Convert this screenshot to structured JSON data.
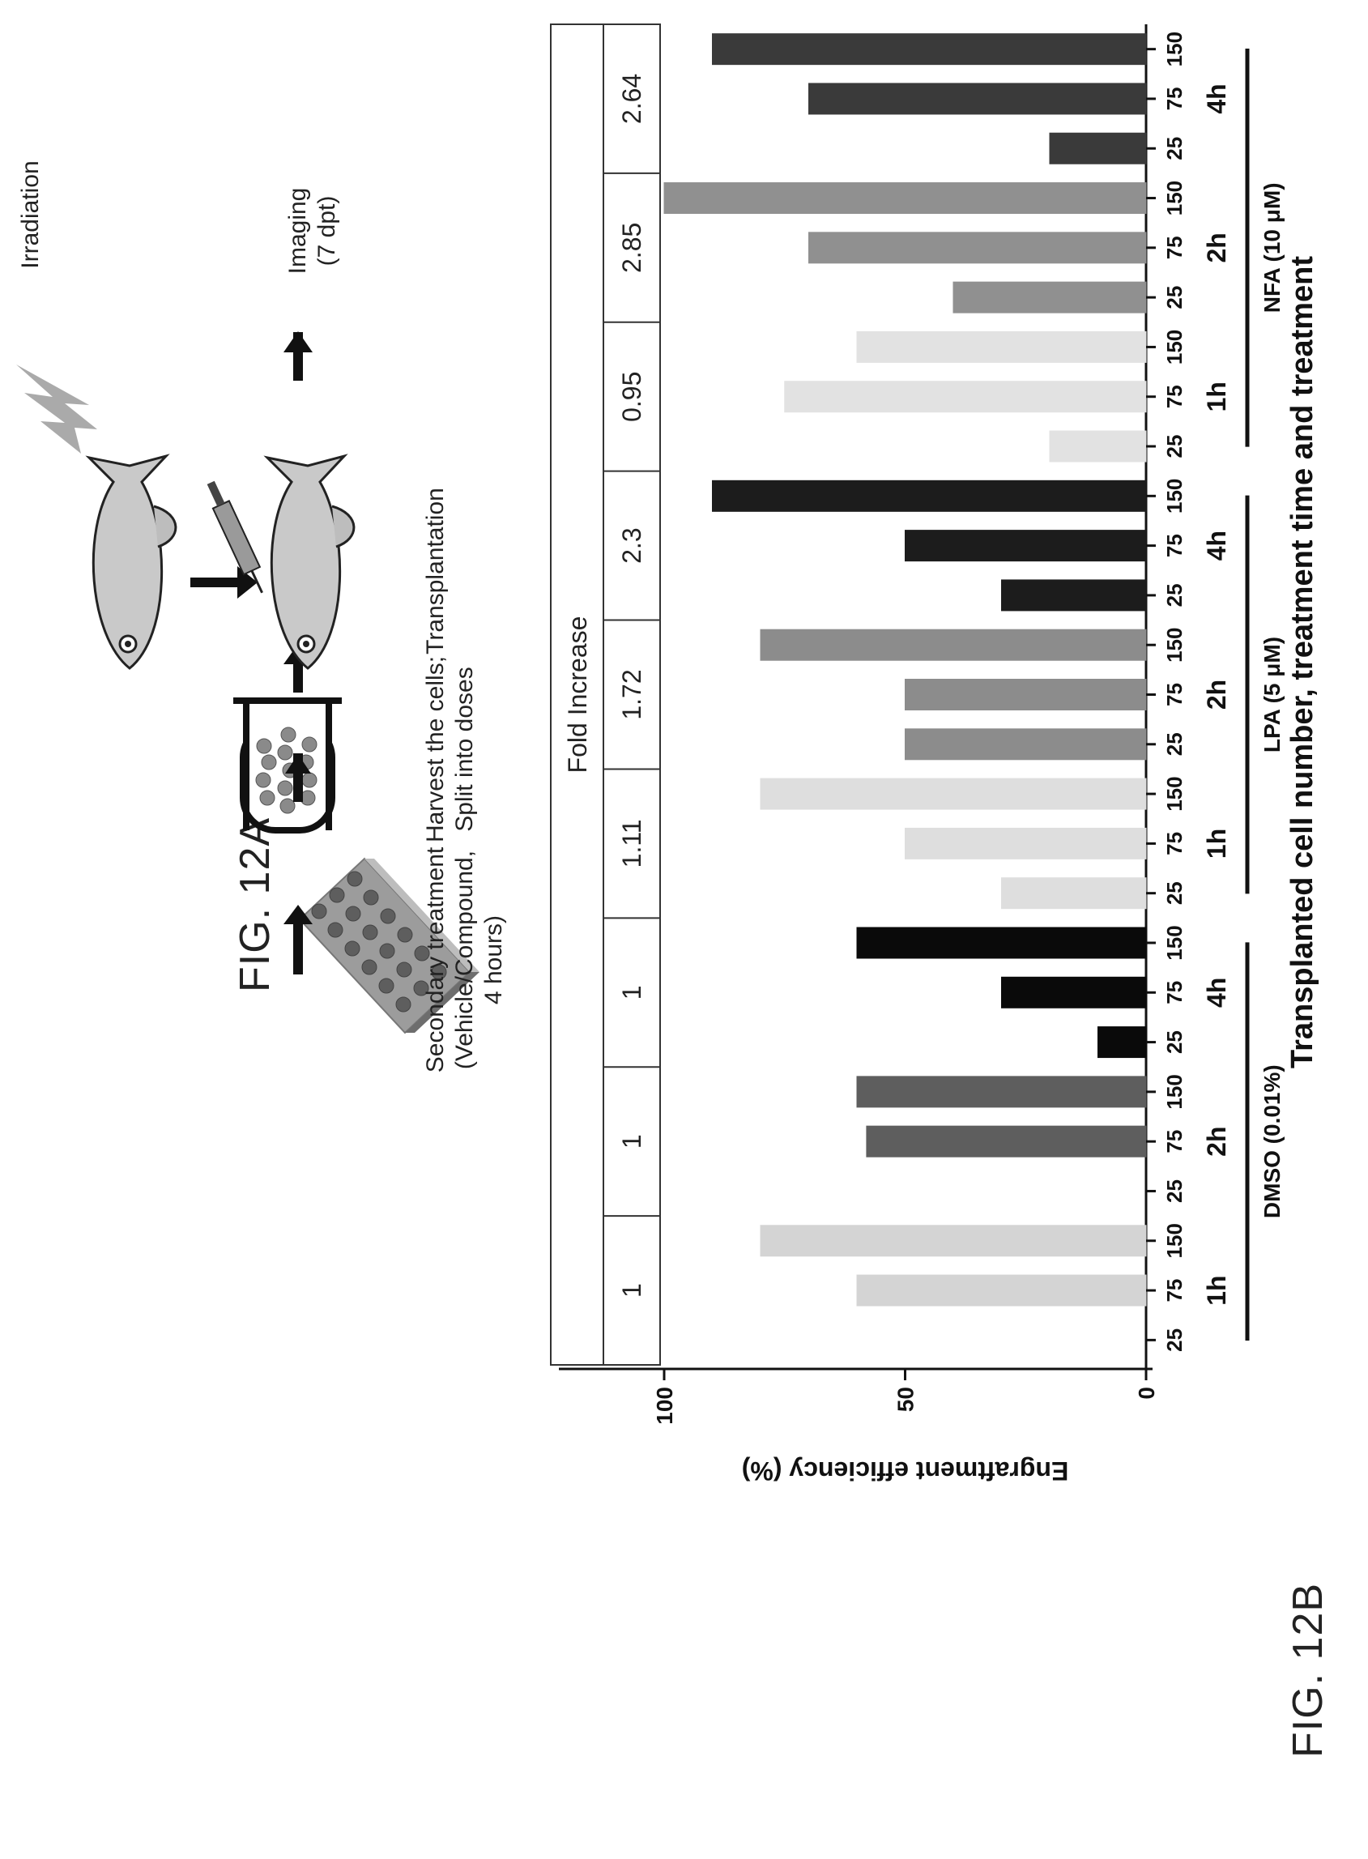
{
  "figure": {
    "label_a": "FIG. 12A",
    "label_b": "FIG. 12B"
  },
  "workflow": {
    "steps": [
      {
        "icon": "well-plate-icon",
        "lines": [
          "Secondary treatment",
          "(Vehicle/Compound,",
          "4 hours)"
        ]
      },
      {
        "icon": "tube-icon",
        "lines": [
          "Harvest the cells;",
          "Split into doses"
        ]
      },
      {
        "icon": "fish-injection-icon",
        "lines": [
          "Transplantation"
        ]
      },
      {
        "icon": "camera-free-arrow",
        "lines": [
          "Imaging",
          "(7 dpt)"
        ]
      }
    ],
    "irradiation_label": "Irradiation"
  },
  "chart_data": {
    "type": "bar",
    "ylabel": "Engraftment efficiency (%)",
    "xlabel": "Transplanted cell number, treatment time and treatment",
    "ylim": [
      0,
      100
    ],
    "yticks": [
      0,
      50,
      100
    ],
    "fold_increase_title": "Fold Increase",
    "treatments": [
      {
        "name": "DMSO (0.01%)"
      },
      {
        "name": "LPA (5 μM)"
      },
      {
        "name": "NFA (10 μM)"
      }
    ],
    "groups": [
      {
        "treatment": 0,
        "time": "1h",
        "color": "#d4d4d4",
        "cells": [
          "25",
          "75",
          "150"
        ],
        "values": [
          0,
          60,
          80
        ],
        "fold": "1"
      },
      {
        "treatment": 0,
        "time": "2h",
        "color": "#5e5e5e",
        "cells": [
          "25",
          "75",
          "150"
        ],
        "values": [
          0,
          58,
          60
        ],
        "fold": "1"
      },
      {
        "treatment": 0,
        "time": "4h",
        "color": "#0a0a0a",
        "cells": [
          "25",
          "75",
          "150"
        ],
        "values": [
          10,
          30,
          60
        ],
        "fold": "1"
      },
      {
        "treatment": 1,
        "time": "1h",
        "color": "#dedede",
        "cells": [
          "25",
          "75",
          "150"
        ],
        "values": [
          30,
          50,
          80
        ],
        "fold": "1.11"
      },
      {
        "treatment": 1,
        "time": "2h",
        "color": "#8c8c8c",
        "cells": [
          "25",
          "75",
          "150"
        ],
        "values": [
          50,
          50,
          80
        ],
        "fold": "1.72"
      },
      {
        "treatment": 1,
        "time": "4h",
        "color": "#1c1c1c",
        "cells": [
          "25",
          "75",
          "150"
        ],
        "values": [
          30,
          50,
          90
        ],
        "fold": "2.3"
      },
      {
        "treatment": 2,
        "time": "1h",
        "color": "#e2e2e2",
        "cells": [
          "25",
          "75",
          "150"
        ],
        "values": [
          20,
          75,
          60
        ],
        "fold": "0.95"
      },
      {
        "treatment": 2,
        "time": "2h",
        "color": "#909090",
        "cells": [
          "25",
          "75",
          "150"
        ],
        "values": [
          40,
          70,
          100
        ],
        "fold": "2.85"
      },
      {
        "treatment": 2,
        "time": "4h",
        "color": "#3a3a3a",
        "cells": [
          "25",
          "75",
          "150"
        ],
        "values": [
          20,
          70,
          90
        ],
        "fold": "2.64"
      }
    ]
  }
}
